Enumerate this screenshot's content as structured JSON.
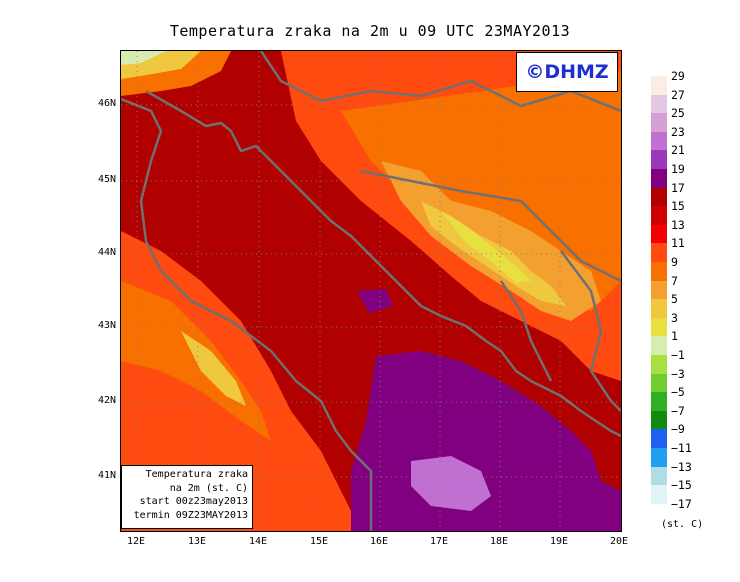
{
  "title": "Temperatura zraka na 2m u 09 UTC 23MAY2013",
  "logo": "©DHMZ",
  "info": [
    "Temperatura zraka",
    "na 2m (st. C)",
    "start 00z23may2013",
    "termin 09Z23MAY2013"
  ],
  "lat_labels": [
    "46N",
    "45N",
    "44N",
    "43N",
    "42N",
    "41N"
  ],
  "lon_labels": [
    "12E",
    "13E",
    "14E",
    "15E",
    "16E",
    "17E",
    "18E",
    "19E",
    "20E"
  ],
  "colorbar": {
    "unit": "(st. C)",
    "labels": [
      "29",
      "27",
      "25",
      "23",
      "21",
      "19",
      "17",
      "15",
      "13",
      "11",
      "9",
      "7",
      "5",
      "3",
      "1",
      "−1",
      "−3",
      "−5",
      "−7",
      "−9",
      "−11",
      "−13",
      "−15",
      "−17"
    ],
    "colors": [
      "#fbeee0",
      "#e3c8e3",
      "#d6a0d6",
      "#c070d0",
      "#9a3ab8",
      "#800080",
      "#b00000",
      "#d00000",
      "#f40000",
      "#ff4a10",
      "#f77000",
      "#f4a030",
      "#f0c840",
      "#e8e040",
      "#d8ecb0",
      "#a8e040",
      "#70cc30",
      "#30b020",
      "#108a10",
      "#2060f0",
      "#20a0ee",
      "#b0dce8",
      "#e0f4f8",
      "#ffffff"
    ]
  }
}
